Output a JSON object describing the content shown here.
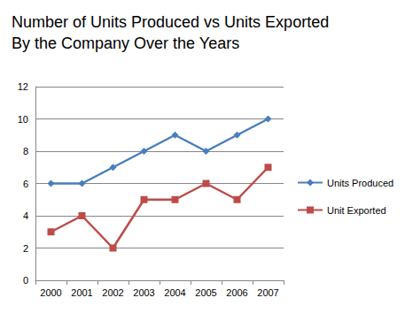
{
  "chart_data": {
    "type": "line",
    "title": "Number of Units Produced vs Units Exported\nBy the Company Over the Years",
    "categories": [
      "2000",
      "2001",
      "2002",
      "2003",
      "2004",
      "2005",
      "2006",
      "2007"
    ],
    "series": [
      {
        "name": "Units Produced",
        "color": "#4a7ebb",
        "marker": "diamond",
        "values": [
          6,
          6,
          7,
          8,
          9,
          8,
          9,
          10
        ]
      },
      {
        "name": "Unit Exported",
        "color": "#be4b48",
        "marker": "square",
        "values": [
          3,
          4,
          2,
          5,
          5,
          6,
          5,
          7
        ]
      }
    ],
    "ylim": [
      0,
      12
    ],
    "yticks": [
      0,
      2,
      4,
      6,
      8,
      10,
      12
    ],
    "grid": true,
    "legend": "right"
  }
}
